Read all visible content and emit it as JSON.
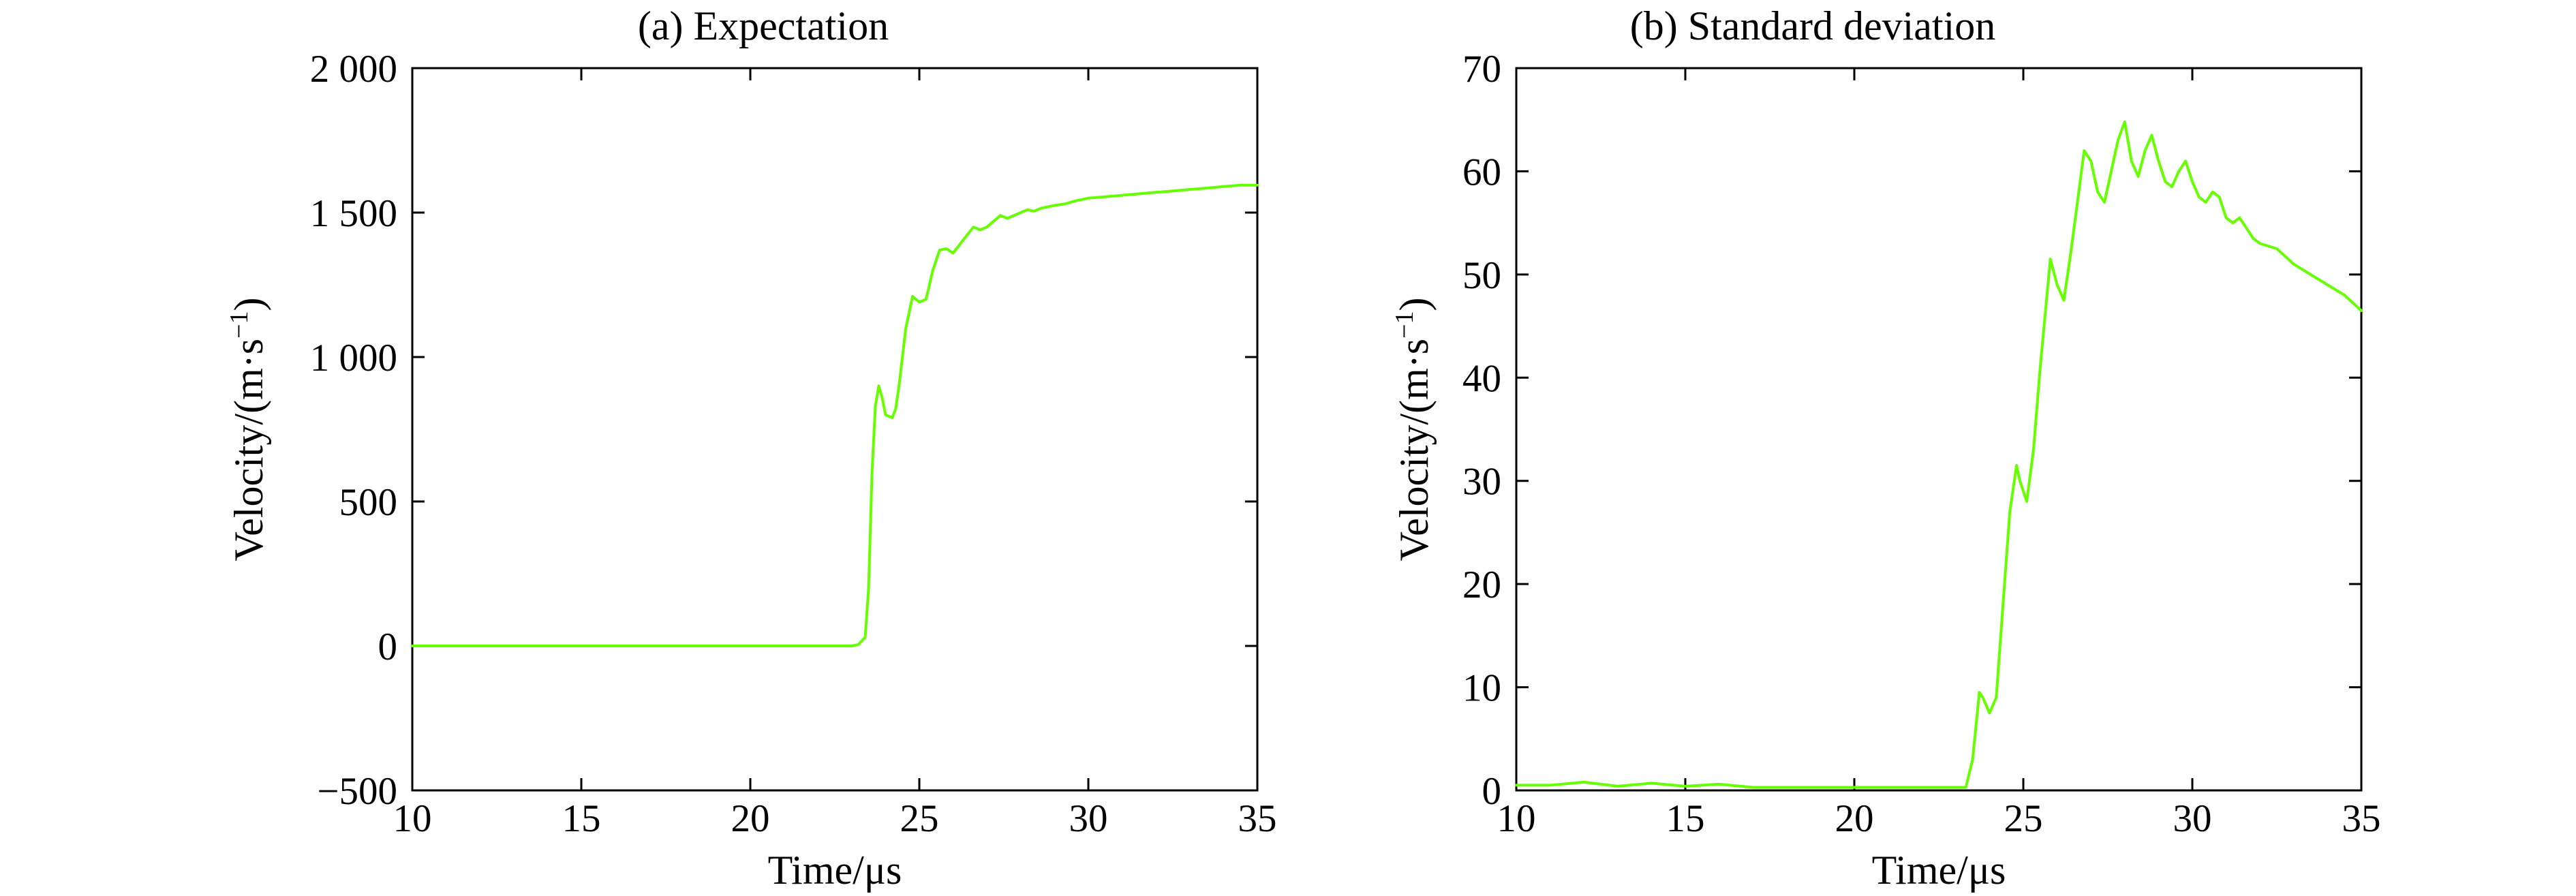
{
  "chart_data": [
    {
      "type": "line",
      "title": "(a) Expectation",
      "xlabel": "Time/μs",
      "ylabel": "Velocity/(m·s",
      "ylabel_sup": "−1",
      "ylabel_close": ")",
      "xlim": [
        10,
        35
      ],
      "ylim": [
        -500,
        2000
      ],
      "xticks": [
        10,
        15,
        20,
        25,
        30,
        35
      ],
      "xtick_labels": [
        "10",
        "15",
        "20",
        "25",
        "30",
        "35"
      ],
      "yticks": [
        -500,
        0,
        500,
        1000,
        1500,
        2000
      ],
      "ytick_labels": [
        "−500",
        "0",
        "500",
        "1 000",
        "1 500",
        "2 000"
      ],
      "grid": false,
      "series": [
        {
          "color": "#66ff00",
          "x": [
            10,
            23.0,
            23.2,
            23.4,
            23.5,
            23.6,
            23.7,
            23.8,
            23.9,
            24.0,
            24.2,
            24.3,
            24.4,
            24.5,
            24.6,
            24.8,
            25.0,
            25.2,
            25.4,
            25.6,
            25.8,
            26.0,
            26.2,
            26.4,
            26.6,
            26.8,
            27.0,
            27.2,
            27.4,
            27.6,
            27.8,
            28.0,
            28.2,
            28.4,
            28.6,
            28.8,
            29.0,
            29.3,
            29.6,
            30.0,
            30.5,
            31.0,
            31.5,
            32.0,
            32.5,
            33.0,
            33.5,
            34.0,
            34.5,
            35.0
          ],
          "y": [
            0,
            0,
            5,
            30,
            200,
            600,
            830,
            900,
            860,
            800,
            790,
            820,
            900,
            1000,
            1100,
            1210,
            1190,
            1200,
            1300,
            1370,
            1375,
            1360,
            1390,
            1420,
            1450,
            1440,
            1450,
            1470,
            1490,
            1480,
            1490,
            1500,
            1510,
            1505,
            1515,
            1520,
            1525,
            1530,
            1540,
            1550,
            1555,
            1560,
            1565,
            1570,
            1575,
            1580,
            1585,
            1590,
            1595,
            1595
          ]
        }
      ]
    },
    {
      "type": "line",
      "title": "(b) Standard deviation",
      "xlabel": "Time/μs",
      "ylabel": "Velocity/(m·s",
      "ylabel_sup": "−1",
      "ylabel_close": ")",
      "xlim": [
        10,
        35
      ],
      "ylim": [
        0,
        70
      ],
      "xticks": [
        10,
        15,
        20,
        25,
        30,
        35
      ],
      "xtick_labels": [
        "10",
        "15",
        "20",
        "25",
        "30",
        "35"
      ],
      "yticks": [
        0,
        10,
        20,
        30,
        40,
        50,
        60,
        70
      ],
      "ytick_labels": [
        "0",
        "10",
        "20",
        "30",
        "40",
        "50",
        "60",
        "70"
      ],
      "grid": false,
      "series": [
        {
          "color": "#66ff00",
          "x": [
            10,
            11,
            12,
            13,
            14,
            15,
            16,
            17,
            18,
            19,
            20,
            21,
            22,
            23.0,
            23.3,
            23.5,
            23.7,
            23.8,
            24.0,
            24.2,
            24.4,
            24.6,
            24.8,
            24.9,
            25.1,
            25.3,
            25.5,
            25.7,
            25.8,
            26.0,
            26.2,
            26.4,
            26.6,
            26.8,
            27.0,
            27.2,
            27.4,
            27.6,
            27.8,
            28.0,
            28.2,
            28.4,
            28.6,
            28.8,
            29.0,
            29.2,
            29.4,
            29.6,
            29.8,
            30.0,
            30.2,
            30.4,
            30.6,
            30.8,
            31.0,
            31.2,
            31.4,
            31.6,
            31.8,
            32.0,
            32.5,
            33.0,
            33.5,
            34.0,
            34.5,
            35.0
          ],
          "y": [
            0.5,
            0.5,
            0.8,
            0.4,
            0.7,
            0.4,
            0.6,
            0.3,
            0.3,
            0.3,
            0.3,
            0.3,
            0.3,
            0.3,
            0.3,
            3,
            9.5,
            9,
            7.5,
            9,
            18,
            27,
            31.5,
            30,
            28,
            33,
            41,
            48,
            51.5,
            49,
            47.5,
            52,
            57,
            62,
            61,
            58,
            57,
            60,
            63,
            64.8,
            61,
            59.5,
            62,
            63.5,
            61,
            59,
            58.5,
            60,
            61,
            59,
            57.5,
            57,
            58,
            57.5,
            55.5,
            55,
            55.5,
            54.5,
            53.5,
            53,
            52.5,
            51,
            50,
            49,
            48,
            46.5
          ]
        }
      ]
    }
  ]
}
